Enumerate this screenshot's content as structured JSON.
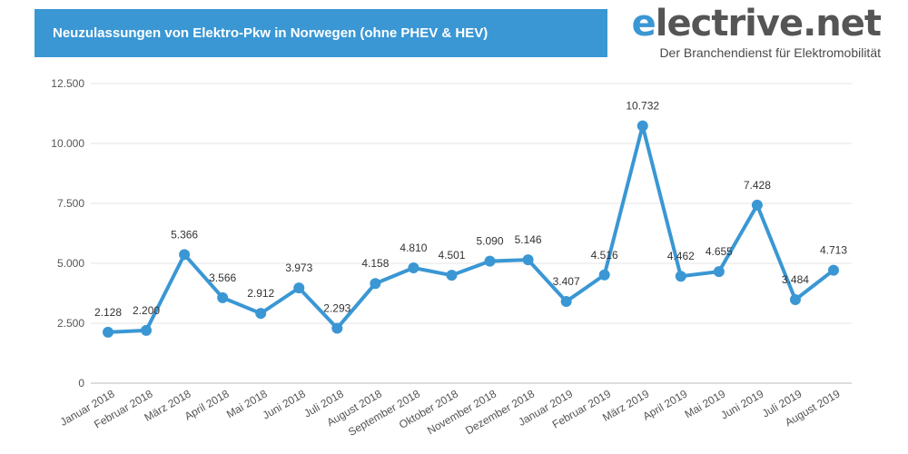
{
  "header": {
    "title": "Neuzulassungen von Elektro-Pkw in Norwegen (ohne PHEV & HEV)"
  },
  "brand": {
    "name_accent": "e",
    "name_rest": "lectrive.net",
    "tagline": "Der Branchendienst für Elektromobilität",
    "accent_color": "#3a97d4"
  },
  "chart_data": {
    "type": "line",
    "title": "Neuzulassungen von Elektro-Pkw in Norwegen (ohne PHEV & HEV)",
    "xlabel": "",
    "ylabel": "",
    "ylim": [
      0,
      12500
    ],
    "yticks": [
      0,
      2500,
      5000,
      7500,
      10000,
      12500
    ],
    "ytick_labels": [
      "0",
      "2.500",
      "5.000",
      "7.500",
      "10.000",
      "12.500"
    ],
    "grid": true,
    "legend": "none",
    "line_color": "#3a97d4",
    "categories": [
      "Januar 2018",
      "Februar 2018",
      "März 2018",
      "April 2018",
      "Mai 2018",
      "Juni 2018",
      "Juli 2018",
      "August 2018",
      "September 2018",
      "Oktober 2018",
      "November 2018",
      "Dezember 2018",
      "Januar 2019",
      "Februar 2019",
      "März 2019",
      "April 2019",
      "Mai 2019",
      "Juni 2019",
      "Juli 2019",
      "August 2019"
    ],
    "values": [
      2128,
      2200,
      5366,
      3566,
      2912,
      3973,
      2293,
      4158,
      4810,
      4501,
      5090,
      5146,
      3407,
      4516,
      10732,
      4462,
      4655,
      7428,
      3484,
      4713
    ],
    "value_labels": [
      "2.128",
      "2.200",
      "5.366",
      "3.566",
      "2.912",
      "3.973",
      "2.293",
      "4.158",
      "4.810",
      "4.501",
      "5.090",
      "5.146",
      "3.407",
      "4.516",
      "10.732",
      "4.462",
      "4.655",
      "7.428",
      "3.484",
      "4.713"
    ]
  }
}
